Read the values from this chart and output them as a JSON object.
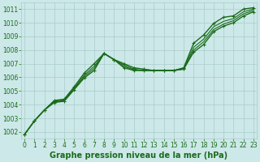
{
  "title": "Graphe pression niveau de la mer (hPa)",
  "background_color": "#cce8e8",
  "grid_color": "#aacccc",
  "line_color": "#1a6b1a",
  "xlim": [
    -0.3,
    23.3
  ],
  "ylim": [
    1001.5,
    1011.5
  ],
  "xticks": [
    0,
    1,
    2,
    3,
    4,
    5,
    6,
    7,
    8,
    9,
    10,
    11,
    12,
    13,
    14,
    15,
    16,
    17,
    18,
    19,
    20,
    21,
    22,
    23
  ],
  "yticks": [
    1002,
    1003,
    1004,
    1005,
    1006,
    1007,
    1008,
    1009,
    1010,
    1011
  ],
  "lines": [
    {
      "y": [
        1001.8,
        1002.8,
        1003.6,
        1004.3,
        1004.4,
        1005.3,
        1006.3,
        1007.0,
        1007.75,
        1007.3,
        1007.0,
        1006.7,
        1006.6,
        1006.5,
        1006.5,
        1006.5,
        1006.7,
        1008.5,
        1009.1,
        1009.95,
        1010.4,
        1010.5,
        1011.0,
        1011.1
      ],
      "marker": true,
      "lw": 1.0
    },
    {
      "y": [
        1001.8,
        1002.8,
        1003.6,
        1004.25,
        1004.35,
        1005.2,
        1006.15,
        1006.8,
        1007.75,
        1007.3,
        1006.9,
        1006.6,
        1006.5,
        1006.5,
        1006.5,
        1006.5,
        1006.65,
        1008.2,
        1008.8,
        1009.7,
        1010.1,
        1010.3,
        1010.8,
        1011.0
      ],
      "marker": false,
      "lw": 0.8
    },
    {
      "y": [
        1001.8,
        1002.8,
        1003.6,
        1004.2,
        1004.3,
        1005.15,
        1006.05,
        1006.65,
        1007.75,
        1007.3,
        1006.8,
        1006.55,
        1006.5,
        1006.5,
        1006.5,
        1006.5,
        1006.6,
        1008.0,
        1008.6,
        1009.5,
        1009.9,
        1010.15,
        1010.65,
        1010.9
      ],
      "marker": false,
      "lw": 0.8
    },
    {
      "y": [
        1001.8,
        1002.8,
        1003.6,
        1004.15,
        1004.25,
        1005.1,
        1005.95,
        1006.5,
        1007.75,
        1007.3,
        1006.7,
        1006.5,
        1006.5,
        1006.5,
        1006.5,
        1006.5,
        1006.6,
        1007.85,
        1008.4,
        1009.35,
        1009.75,
        1010.0,
        1010.5,
        1010.8
      ],
      "marker": true,
      "lw": 1.0
    }
  ],
  "fontsize_label": 7,
  "fontsize_tick": 5.5
}
